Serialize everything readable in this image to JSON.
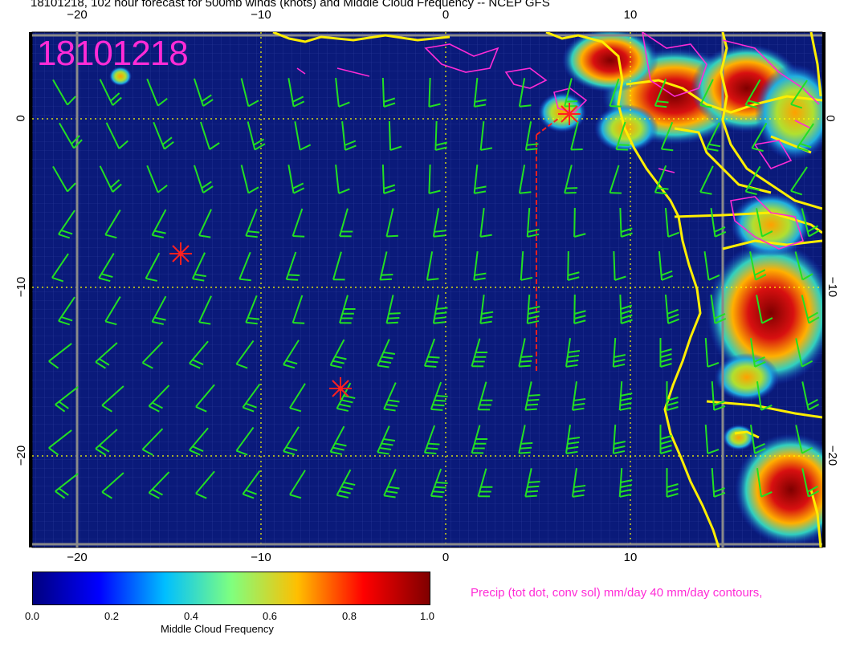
{
  "title": "18101218, 102 hour forecast for 500mb winds (knots) and Middle Cloud Frequency -- NCEP GFS",
  "stamp": "18101218",
  "axes": {
    "x_ticks": [
      "−20",
      "−10",
      "0",
      "10"
    ],
    "y_ticks": [
      "0",
      "−10",
      "−20"
    ]
  },
  "colorbar": {
    "label": "Middle Cloud Frequency",
    "ticks": [
      "0.0",
      "0.2",
      "0.4",
      "0.6",
      "0.8",
      "1.0"
    ],
    "colors": [
      "#00007f",
      "#0000ff",
      "#00bfff",
      "#7fff7f",
      "#ffbf00",
      "#ff0000",
      "#7f0000"
    ]
  },
  "precip_note": "Precip (tot dot, conv sol) mm/day 40 mm/day contours,",
  "colors": {
    "ocean": "#0a1a7a",
    "coast": "#ffee00",
    "barb": "#22e022",
    "precip_contour": "#ff2bd6",
    "marker": "#ff2020",
    "graticule": "#ffff00"
  }
}
